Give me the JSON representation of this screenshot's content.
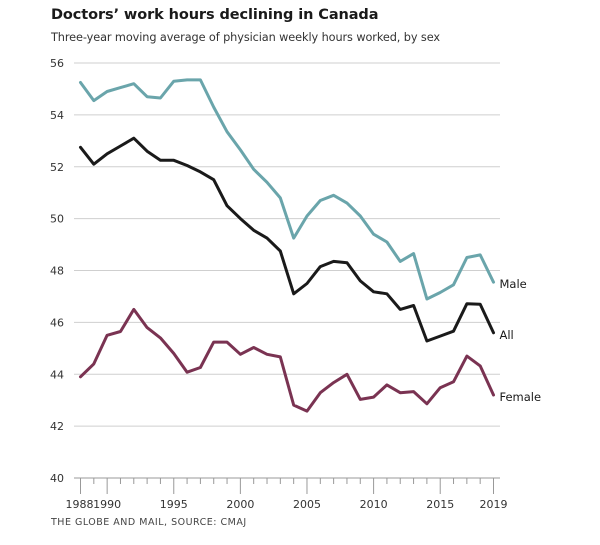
{
  "chart_data": {
    "type": "line",
    "title": "Doctors’ work hours declining in Canada",
    "subtitle": "Three-year moving average of physician weekly hours worked, by sex",
    "source": "THE GLOBE AND MAIL, SOURCE: CMAJ",
    "xlabel": "",
    "ylabel": "",
    "xlim": [
      1988,
      2019
    ],
    "ylim": [
      40,
      56
    ],
    "grid": true,
    "legend": "inline-right",
    "y_ticks": [
      40,
      42,
      44,
      46,
      48,
      50,
      52,
      54,
      56
    ],
    "x_tick_labels": [
      "1988",
      "1990",
      "1995",
      "2000",
      "2005",
      "2010",
      "2015",
      "2019"
    ],
    "x_major_ticks": [
      1988,
      1990,
      1995,
      2000,
      2005,
      2010,
      2015,
      2019
    ],
    "x": [
      1988,
      1989,
      1990,
      1991,
      1992,
      1993,
      1994,
      1995,
      1996,
      1997,
      1998,
      1999,
      2000,
      2001,
      2002,
      2003,
      2004,
      2005,
      2006,
      2007,
      2008,
      2009,
      2010,
      2011,
      2012,
      2013,
      2014,
      2015,
      2016,
      2017,
      2018,
      2019
    ],
    "series": [
      {
        "name": "Male",
        "color": "#6aa5ab",
        "values": [
          55.25,
          54.55,
          54.9,
          55.05,
          55.2,
          54.7,
          54.65,
          55.3,
          55.35,
          55.35,
          54.3,
          53.35,
          52.65,
          51.9,
          51.4,
          50.8,
          49.25,
          50.1,
          50.7,
          50.9,
          50.6,
          50.1,
          49.4,
          49.1,
          48.35,
          48.65,
          46.9,
          47.15,
          47.45,
          48.5,
          48.6,
          47.55
        ]
      },
      {
        "name": "All",
        "color": "#1a1a1a",
        "values": [
          52.75,
          52.1,
          52.5,
          52.8,
          53.1,
          52.6,
          52.25,
          52.25,
          52.05,
          51.8,
          51.5,
          50.5,
          50.0,
          49.55,
          49.25,
          48.75,
          47.1,
          47.5,
          48.15,
          48.35,
          48.3,
          47.6,
          47.18,
          47.1,
          46.5,
          46.65,
          45.28,
          45.47,
          45.66,
          46.72,
          46.7,
          45.6
        ]
      },
      {
        "name": "Female",
        "color": "#7a3352",
        "values": [
          43.9,
          44.4,
          45.5,
          45.65,
          46.5,
          45.8,
          45.4,
          44.8,
          44.08,
          44.26,
          45.24,
          45.24,
          44.77,
          45.03,
          44.77,
          44.67,
          42.81,
          42.58,
          43.29,
          43.68,
          44.0,
          43.03,
          43.12,
          43.59,
          43.29,
          43.33,
          42.86,
          43.48,
          43.71,
          44.7,
          44.32,
          43.2
        ]
      }
    ]
  }
}
